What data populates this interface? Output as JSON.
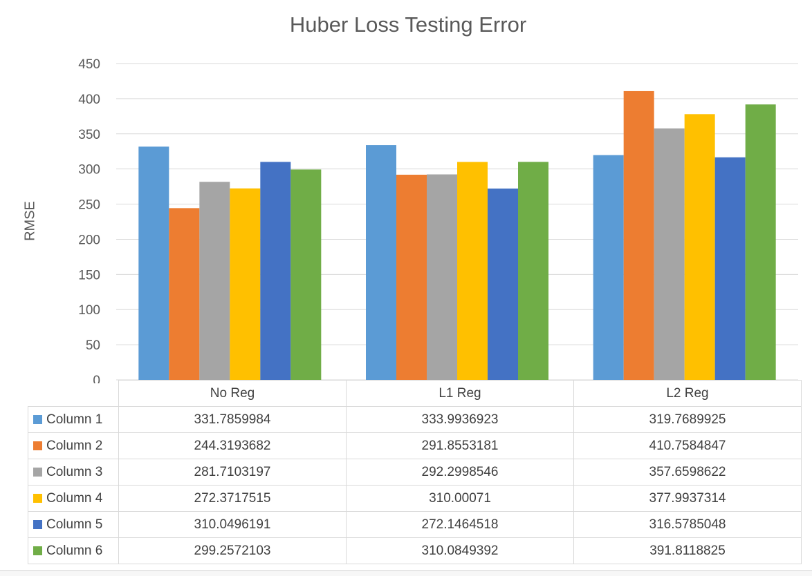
{
  "chart_data": {
    "type": "bar",
    "title": "Huber Loss Testing Error",
    "ylabel": "RMSE",
    "xlabel": "",
    "categories": [
      "No Reg",
      "L1 Reg",
      "L2 Reg"
    ],
    "ylim": [
      0,
      450
    ],
    "yticks": [
      "0",
      "50",
      "100",
      "150",
      "200",
      "250",
      "300",
      "350",
      "400",
      "450"
    ],
    "grid": true,
    "legend": "data-table",
    "series": [
      {
        "name": "Column 1",
        "color": "#5B9BD5",
        "values": [
          331.7859984,
          333.9936923,
          319.7689925
        ],
        "labels": [
          "331.7859984",
          "333.9936923",
          "319.7689925"
        ]
      },
      {
        "name": "Column 2",
        "color": "#ED7D31",
        "values": [
          244.3193682,
          291.8553181,
          410.7584847
        ],
        "labels": [
          "244.3193682",
          "291.8553181",
          "410.7584847"
        ]
      },
      {
        "name": "Column 3",
        "color": "#A5A5A5",
        "values": [
          281.7103197,
          292.2998546,
          357.6598622
        ],
        "labels": [
          "281.7103197",
          "292.2998546",
          "357.6598622"
        ]
      },
      {
        "name": "Column 4",
        "color": "#FFC000",
        "values": [
          272.3717515,
          310.00071,
          377.9937314
        ],
        "labels": [
          "272.3717515",
          "310.00071",
          "377.9937314"
        ]
      },
      {
        "name": "Column 5",
        "color": "#4472C4",
        "values": [
          310.0496191,
          272.1464518,
          316.5785048
        ],
        "labels": [
          "310.0496191",
          "272.1464518",
          "316.5785048"
        ]
      },
      {
        "name": "Column 6",
        "color": "#70AD47",
        "values": [
          299.2572103,
          310.0849392,
          391.8118825
        ],
        "labels": [
          "299.2572103",
          "310.0849392",
          "391.8118825"
        ]
      }
    ]
  }
}
